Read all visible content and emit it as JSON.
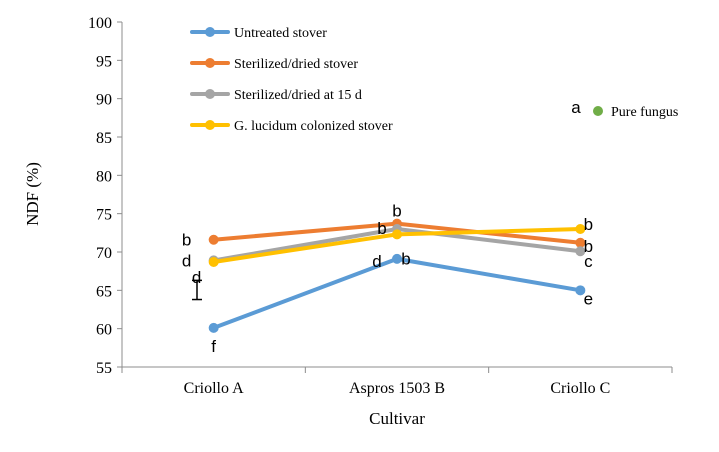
{
  "chart_data": {
    "type": "line",
    "categories": [
      "Criollo A",
      "Aspros 1503 B",
      "Criollo C"
    ],
    "xlabel": "Cultivar",
    "ylabel": "NDF (%)",
    "ylim": [
      55,
      100
    ],
    "yticks": [
      55,
      60,
      65,
      70,
      75,
      80,
      85,
      90,
      95,
      100
    ],
    "grid": false,
    "legend_position": "top-left",
    "series": [
      {
        "name": "Untreated stover",
        "color": "#5b9bd5",
        "values": [
          60.1,
          69.1,
          65.0
        ],
        "letters": [
          "f",
          "d",
          "e"
        ]
      },
      {
        "name": "Sterilized/dried stover",
        "color": "#ed7d31",
        "values": [
          71.6,
          73.7,
          71.2
        ],
        "letters": [
          "b",
          "b",
          "b"
        ]
      },
      {
        "name": "Sterilized/dried at 15 d",
        "color": "#a5a5a5",
        "values": [
          68.9,
          73.0,
          70.1
        ],
        "letters": [
          "d",
          "b",
          "c"
        ]
      },
      {
        "name": "G. lucidum colonized stover",
        "color": "#ffc000",
        "values": [
          68.7,
          72.3,
          73.0
        ],
        "letters": [
          "d",
          "b",
          "b"
        ]
      }
    ],
    "pure_fungus": {
      "label": "Pure fungus",
      "letter": "a",
      "color": "#70ad47"
    },
    "error_bar": {
      "low": 63.8,
      "high": 66.3
    }
  }
}
